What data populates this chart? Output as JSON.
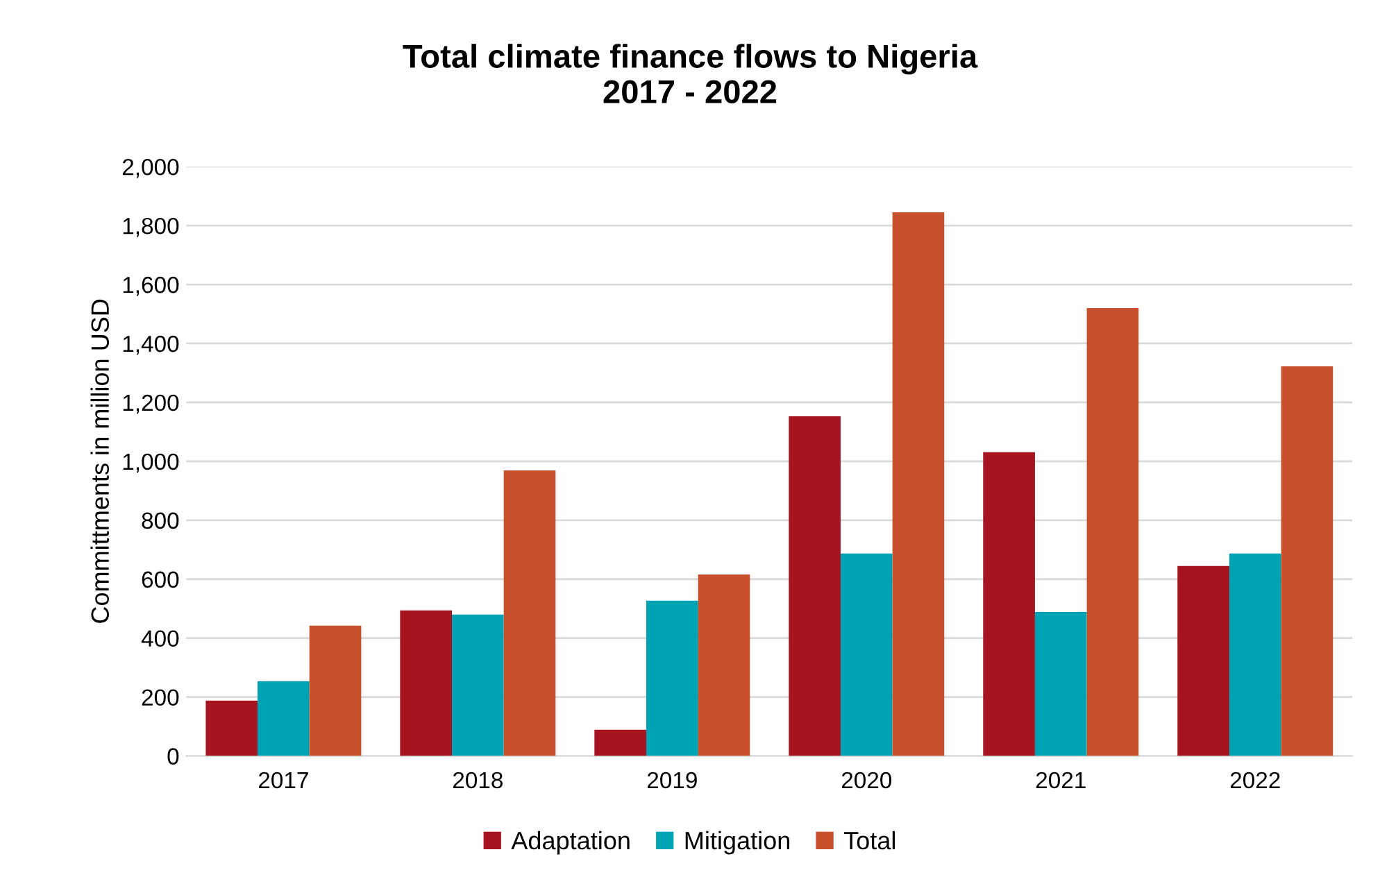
{
  "chart_data": {
    "type": "bar",
    "title": "Total climate finance flows to Nigeria\n2017 - 2022",
    "ylabel": "Committments in million USD",
    "categories": [
      "2017",
      "2018",
      "2019",
      "2020",
      "2021",
      "2022"
    ],
    "series": [
      {
        "name": "Adaptation",
        "color": "#a5141f",
        "values": [
          188,
          494,
          89,
          1153,
          1031,
          645
        ]
      },
      {
        "name": "Mitigation",
        "color": "#00a3b4",
        "values": [
          254,
          480,
          527,
          687,
          489,
          687
        ]
      },
      {
        "name": "Total",
        "color": "#c9502c",
        "values": [
          442,
          969,
          616,
          1845,
          1520,
          1322
        ]
      }
    ],
    "ylim": [
      0,
      2000
    ],
    "yticks": [
      {
        "value": 0,
        "label": "0"
      },
      {
        "value": 200,
        "label": "200"
      },
      {
        "value": 400,
        "label": "400"
      },
      {
        "value": 600,
        "label": "600"
      },
      {
        "value": 800,
        "label": "800"
      },
      {
        "value": 1000,
        "label": "1,000"
      },
      {
        "value": 1200,
        "label": "1,200"
      },
      {
        "value": 1400,
        "label": "1,400"
      },
      {
        "value": 1600,
        "label": "1,600"
      },
      {
        "value": 1800,
        "label": "1,800"
      },
      {
        "value": 2000,
        "label": "2,000"
      }
    ],
    "grid": "y",
    "legend": "bottom"
  }
}
